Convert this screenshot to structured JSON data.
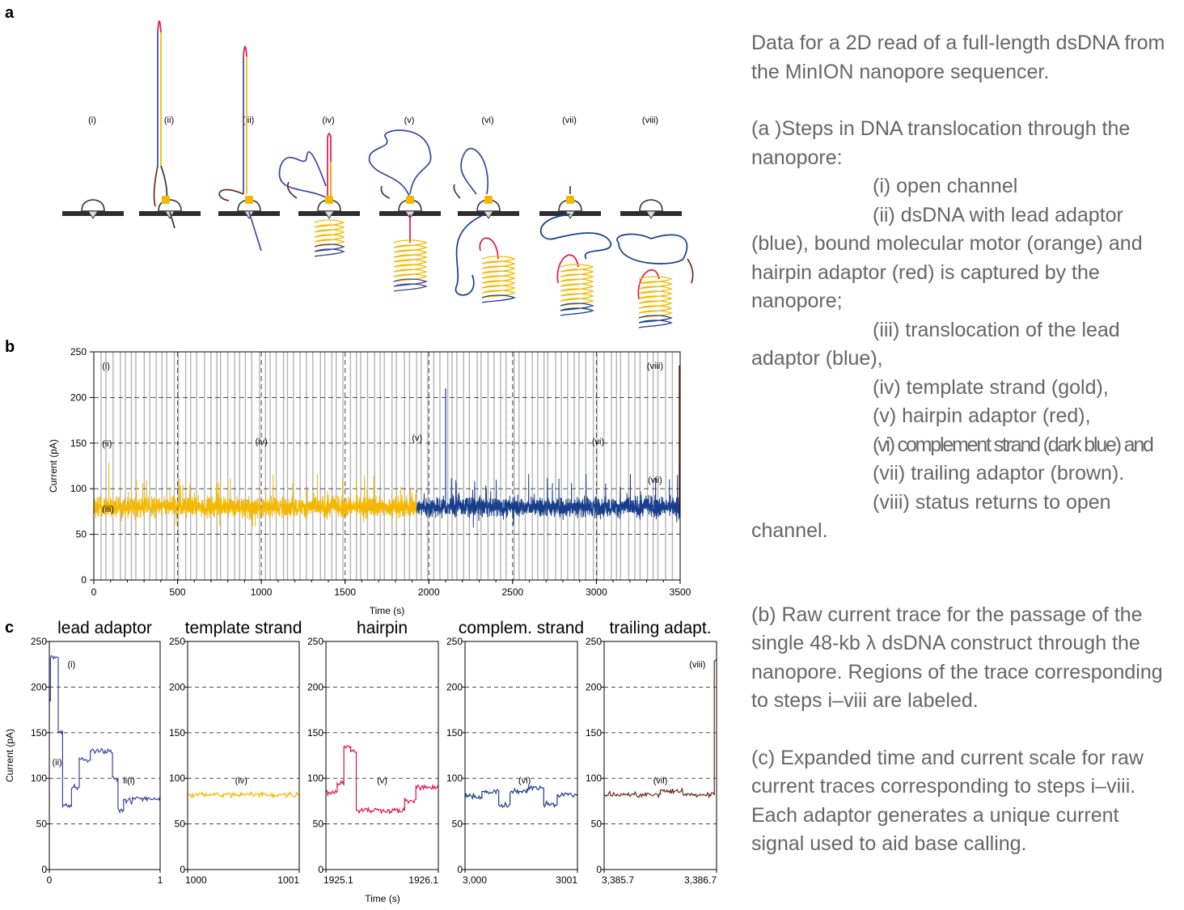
{
  "panel_labels": [
    "a",
    "b",
    "c"
  ],
  "panel_a": {
    "steps": [
      "(i)",
      "(ii)",
      "(iii)",
      "(iv)",
      "(v)",
      "(vi)",
      "(vii)",
      "(viii)"
    ]
  },
  "colors": {
    "lead_adaptor": "#3a46a0",
    "motor": "#f2b800",
    "template": "#f5b800",
    "hairpin": "#e0174f",
    "complement": "#173e8a",
    "trailing": "#6b2a1c",
    "open_channel": "#b3b3b3",
    "caption_text": "#666666"
  },
  "chart_data": [
    {
      "id": "b",
      "type": "line",
      "title": "",
      "xlabel": "Time (s)",
      "ylabel": "Current (pA)",
      "xlim": [
        0,
        3500
      ],
      "ylim": [
        0,
        250
      ],
      "xticks": [
        "0",
        "500",
        "1000",
        "1500",
        "2000",
        "2500",
        "3000",
        "3500"
      ],
      "yticks": [
        "0",
        "50",
        "100",
        "150",
        "200",
        "250"
      ],
      "grid": "dashed horizontal at 50,100,150,200 and dashed vertical at 500,1000,1500,2000,2500,3000",
      "series": [
        {
          "name": "template strand",
          "x_range": [
            0,
            1925
          ],
          "baseline": 80,
          "color": "template"
        },
        {
          "name": "hairpin",
          "x_range": [
            1925,
            1927
          ],
          "baseline": 100,
          "color": "hairpin"
        },
        {
          "name": "complem. strand",
          "x_range": [
            1927,
            3500
          ],
          "baseline": 80,
          "color": "complement"
        }
      ],
      "annotations": [
        {
          "text": "(i)",
          "x": 30,
          "y": 235
        },
        {
          "text": "(ii)",
          "x": 30,
          "y": 150
        },
        {
          "text": "(iii)",
          "x": 30,
          "y": 78
        },
        {
          "text": "(iv)",
          "x": 1000,
          "y": 152
        },
        {
          "text": "(v)",
          "x": 1930,
          "y": 156
        },
        {
          "text": "(vi)",
          "x": 3010,
          "y": 152
        },
        {
          "text": "(vii)",
          "x": 3350,
          "y": 110
        },
        {
          "text": "(viii)",
          "x": 3350,
          "y": 235
        }
      ]
    },
    {
      "id": "c1",
      "type": "line",
      "title": "lead adaptor",
      "color": "lead_adaptor",
      "xlim": [
        0,
        1
      ],
      "ylim": [
        0,
        250
      ],
      "xticks": [
        "0",
        "1"
      ],
      "yticks": [
        "0",
        "50",
        "100",
        "150",
        "200",
        "250"
      ],
      "ylabel": "Current (pA)",
      "levels": [
        {
          "x": [
            0.0,
            0.01
          ],
          "y": 185
        },
        {
          "x": [
            0.01,
            0.08
          ],
          "y": 232
        },
        {
          "x": [
            0.08,
            0.12
          ],
          "y": 150
        },
        {
          "x": [
            0.12,
            0.2
          ],
          "y": 70
        },
        {
          "x": [
            0.2,
            0.27
          ],
          "y": 90
        },
        {
          "x": [
            0.27,
            0.37
          ],
          "y": 120
        },
        {
          "x": [
            0.37,
            0.57
          ],
          "y": 130
        },
        {
          "x": [
            0.57,
            0.62
          ],
          "y": 100
        },
        {
          "x": [
            0.62,
            0.67
          ],
          "y": 65
        },
        {
          "x": [
            0.67,
            0.75
          ],
          "y": 75
        },
        {
          "x": [
            0.75,
            1.0
          ],
          "y": 78
        }
      ],
      "annotations": [
        {
          "text": "(i)",
          "x": 0.2,
          "y": 225
        },
        {
          "text": "(ii)",
          "x": 0.07,
          "y": 118
        },
        {
          "text": "ii(i)",
          "x": 0.72,
          "y": 98
        }
      ]
    },
    {
      "id": "c2",
      "type": "line",
      "title": "template strand",
      "color": "template",
      "xlim": [
        1000,
        1001
      ],
      "ylim": [
        0,
        250
      ],
      "xticks": [
        "1000",
        "1001"
      ],
      "yticks": [
        "0",
        "50",
        "100",
        "150",
        "200",
        "250"
      ],
      "levels": [
        {
          "x": [
            1000,
            1001
          ],
          "y": 82
        }
      ],
      "annotations": [
        {
          "text": "(iv)",
          "x": 1000.48,
          "y": 98
        }
      ]
    },
    {
      "id": "c3",
      "type": "line",
      "title": "hairpin",
      "color": "hairpin",
      "xlim": [
        1925.1,
        1926.1
      ],
      "ylim": [
        0,
        250
      ],
      "xticks": [
        "1925.1",
        "1926.1"
      ],
      "yticks": [
        "0",
        "50",
        "100",
        "150",
        "200",
        "250"
      ],
      "levels": [
        {
          "x": [
            1925.1,
            1925.2
          ],
          "y": 85
        },
        {
          "x": [
            1925.2,
            1925.26
          ],
          "y": 95
        },
        {
          "x": [
            1925.26,
            1925.32
          ],
          "y": 135
        },
        {
          "x": [
            1925.32,
            1925.37
          ],
          "y": 130
        },
        {
          "x": [
            1925.37,
            1925.8
          ],
          "y": 65
        },
        {
          "x": [
            1925.8,
            1925.9
          ],
          "y": 75
        },
        {
          "x": [
            1925.9,
            1926.1
          ],
          "y": 90
        }
      ],
      "annotations": [
        {
          "text": "(v)",
          "x": 1925.6,
          "y": 98
        }
      ]
    },
    {
      "id": "c4",
      "type": "line",
      "title": "complem. strand",
      "color": "complement",
      "xlim": [
        3000,
        3001
      ],
      "ylim": [
        0,
        250
      ],
      "xticks": [
        "3,000",
        "3001"
      ],
      "yticks": [
        "0",
        "50",
        "100",
        "150",
        "200",
        "250"
      ],
      "levels": [
        {
          "x": [
            3000,
            3000.15
          ],
          "y": 80
        },
        {
          "x": [
            3000.15,
            3000.3
          ],
          "y": 85
        },
        {
          "x": [
            3000.3,
            3000.4
          ],
          "y": 70
        },
        {
          "x": [
            3000.4,
            3000.55
          ],
          "y": 85
        },
        {
          "x": [
            3000.55,
            3000.7
          ],
          "y": 90
        },
        {
          "x": [
            3000.7,
            3000.82
          ],
          "y": 72
        },
        {
          "x": [
            3000.82,
            3001
          ],
          "y": 82
        }
      ],
      "annotations": [
        {
          "text": "(vi)",
          "x": 3000.53,
          "y": 98
        }
      ]
    },
    {
      "id": "c5",
      "type": "line",
      "title": "trailing adapt.",
      "color": "trailing",
      "xlim": [
        3385.7,
        3386.7
      ],
      "ylim": [
        0,
        250
      ],
      "xticks": [
        "3,385.7",
        "3,386.7"
      ],
      "yticks": [
        "0",
        "50",
        "100",
        "150",
        "200",
        "250"
      ],
      "levels": [
        {
          "x": [
            3385.7,
            3386.2
          ],
          "y": 82
        },
        {
          "x": [
            3386.2,
            3386.4
          ],
          "y": 86
        },
        {
          "x": [
            3386.4,
            3386.68
          ],
          "y": 82
        },
        {
          "x": [
            3386.68,
            3386.7
          ],
          "y": 230
        }
      ],
      "annotations": [
        {
          "text": "(vii)",
          "x": 3386.2,
          "y": 98
        },
        {
          "text": "(viii)",
          "x": 3386.53,
          "y": 225
        }
      ]
    }
  ],
  "panel_c": {
    "ylabel": "Current (pA)",
    "xlabel": "Time (s)"
  },
  "caption": {
    "intro": "Data for a 2D read of a full-length dsDNA from the MinION nanopore sequencer.",
    "a_intro": "(a )Steps in DNA translocation through the nanopore:",
    "a_i": "(i) open channel",
    "a_ii_1": "(ii) dsDNA with lead adaptor",
    "a_ii_2": "(blue), bound molecular motor (orange) and hairpin adaptor (red) is captured by the nanopore;",
    "a_iii_1": "(iii) translocation of the lead",
    "a_iii_2": "adaptor (blue),",
    "a_iv": "(iv) template strand (gold),",
    "a_v": "(v) hairpin adaptor (red),",
    "a_vi": "(vi) complement strand (dark blue) and",
    "a_vii": "(vii) trailing adaptor (brown).",
    "a_viii_1": "(viii) status returns to open",
    "a_viii_2": "channel.",
    "b": "(b) Raw current trace for the passage of the single 48-kb λ dsDNA construct through the nanopore. Regions of the trace corresponding to steps i–viii are labeled.",
    "c": "(c) Expanded time and current scale for raw current traces corresponding to steps i–viii. Each adaptor generates a unique current signal used to aid base calling."
  }
}
